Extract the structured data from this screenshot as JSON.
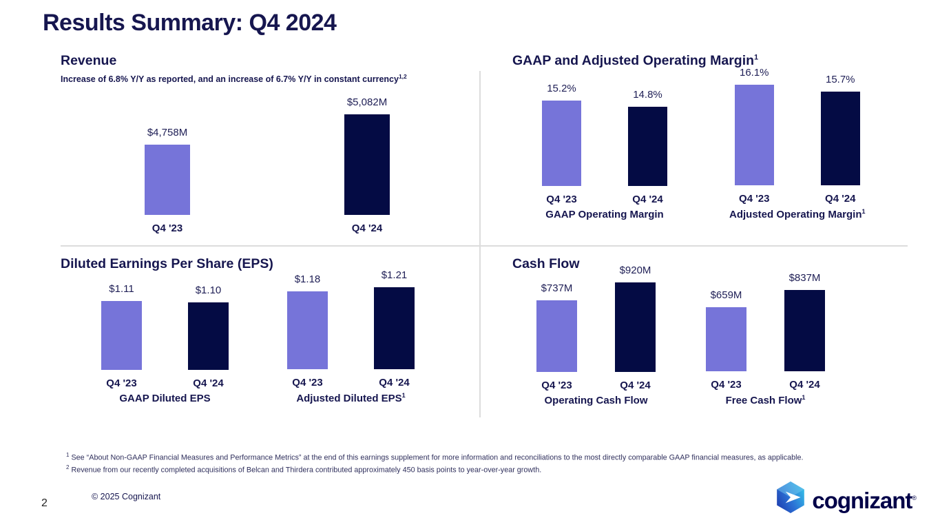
{
  "page": {
    "title": "Results Summary: Q4 2024",
    "page_number": "2",
    "copyright": "© 2025 Cognizant",
    "logo_text": "cognizant",
    "logo_trademark": "®"
  },
  "theme": {
    "bar_color_prior_year": "#7674d9",
    "bar_color_current_year": "#040b44",
    "heading_color": "#16164f",
    "divider_color": "#dcdcdc"
  },
  "footnotes": [
    {
      "marker": "1",
      "text": "See “About Non-GAAP Financial Measures and Performance Metrics” at the end of this earnings supplement for more information and reconciliations to the most directly comparable GAAP financial measures, as applicable."
    },
    {
      "marker": "2",
      "text": "Revenue from our recently completed acquisitions of Belcan and Thirdera contributed approximately 450 basis points to year-over-year growth."
    }
  ],
  "chart_data": [
    {
      "id": "revenue",
      "type": "bar",
      "title": "Revenue",
      "title_superscript": "",
      "subtitle": "Increase of 6.8% Y/Y as reported, and an increase of 6.7% Y/Y in constant currency",
      "subtitle_superscript": "1,2",
      "ylim": [
        4000,
        5082
      ],
      "groups": [
        {
          "label": "",
          "label_superscript": "",
          "categories": [
            "Q4 '23",
            "Q4 '24"
          ],
          "values": [
            4758,
            5082
          ],
          "value_labels": [
            "$4,758M",
            "$5,082M"
          ]
        }
      ]
    },
    {
      "id": "operating-margin",
      "type": "bar",
      "title": "GAAP and Adjusted Operating Margin",
      "title_superscript": "1",
      "ylim": [
        10,
        16.1
      ],
      "groups": [
        {
          "label": "GAAP Operating Margin",
          "label_superscript": "",
          "categories": [
            "Q4 '23",
            "Q4 '24"
          ],
          "values": [
            15.2,
            14.8
          ],
          "value_labels": [
            "15.2%",
            "14.8%"
          ]
        },
        {
          "label": "Adjusted Operating Margin",
          "label_superscript": "1",
          "categories": [
            "Q4 '23",
            "Q4 '24"
          ],
          "values": [
            16.1,
            15.7
          ],
          "value_labels": [
            "16.1%",
            "15.7%"
          ]
        }
      ]
    },
    {
      "id": "diluted-eps",
      "type": "bar",
      "title": "Diluted Earnings Per Share (EPS)",
      "title_superscript": "",
      "ylim": [
        0.59,
        1.21
      ],
      "groups": [
        {
          "label": "GAAP Diluted EPS",
          "label_superscript": "",
          "categories": [
            "Q4 '23",
            "Q4 '24"
          ],
          "values": [
            1.11,
            1.1
          ],
          "value_labels": [
            "$1.11",
            "$1.10"
          ]
        },
        {
          "label": "Adjusted Diluted EPS",
          "label_superscript": "1",
          "categories": [
            "Q4 '23",
            "Q4 '24"
          ],
          "values": [
            1.18,
            1.21
          ],
          "value_labels": [
            "$1.18",
            "$1.21"
          ]
        }
      ]
    },
    {
      "id": "cash-flow",
      "type": "bar",
      "title": "Cash Flow",
      "title_superscript": "",
      "ylim": [
        0,
        920
      ],
      "groups": [
        {
          "label": "Operating Cash Flow",
          "label_superscript": "",
          "categories": [
            "Q4 '23",
            "Q4 '24"
          ],
          "values": [
            737,
            920
          ],
          "value_labels": [
            "$737M",
            "$920M"
          ]
        },
        {
          "label": "Free Cash Flow",
          "label_superscript": "1",
          "categories": [
            "Q4 '23",
            "Q4 '24"
          ],
          "values": [
            659,
            837
          ],
          "value_labels": [
            "$659M",
            "$837M"
          ]
        }
      ]
    }
  ]
}
